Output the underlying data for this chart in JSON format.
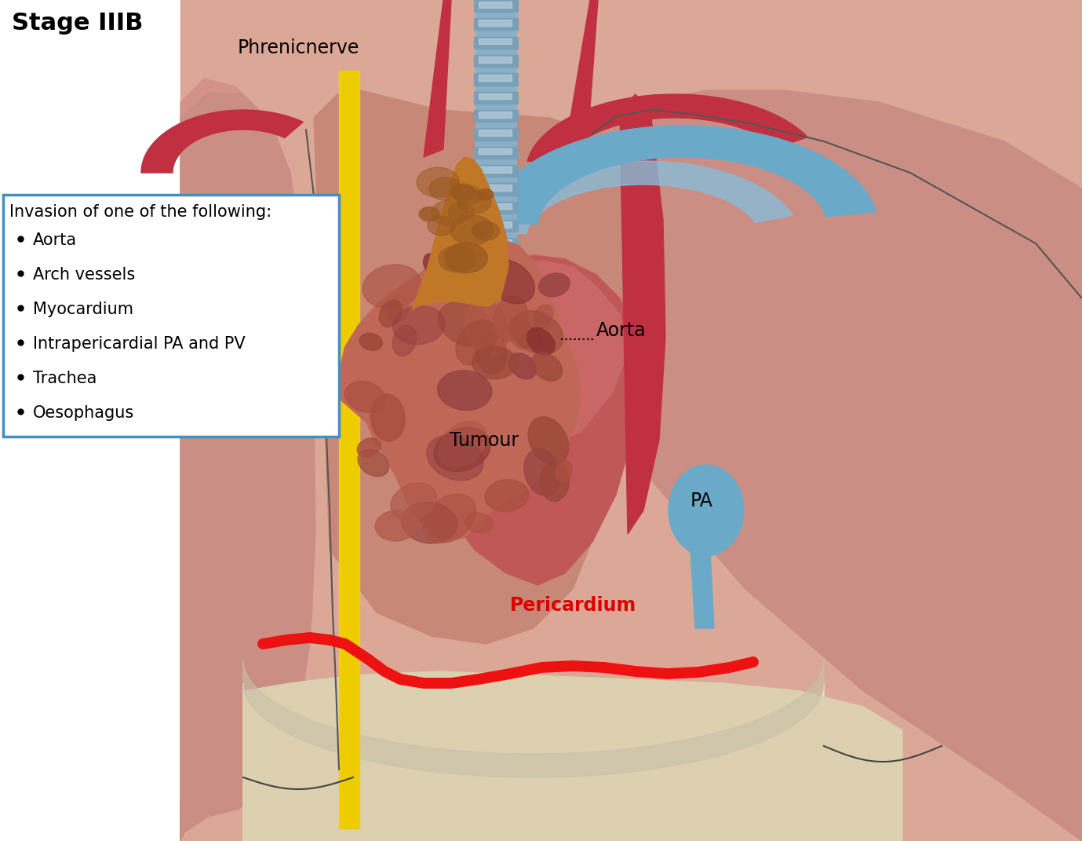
{
  "title": "Stage IIIB",
  "title_fontsize": 22,
  "title_fontweight": "bold",
  "phrenicnerve_label": "Phrenicnerve",
  "aorta_label": "Aorta",
  "tumour_label": "Tumour",
  "pericardium_label": "Pericardium",
  "pa_label": "PA",
  "invasion_title": "Invasion of one of the following:",
  "bullet_items": [
    "Aorta",
    "Arch vessels",
    "Myocardium",
    "Intrapericardial PA and PV",
    "Trachea",
    "Oesophagus"
  ],
  "bg_color": "#ffffff",
  "box_bg": "#ffffff",
  "box_border": "#4090c0",
  "text_color": "#000000",
  "label_color_black": "#000000",
  "label_color_pericardium": "#dd0000",
  "yellow_nerve": "#f0d000",
  "red_pericardium_line": "#ee1111",
  "lung_pink": "#d4938a",
  "lung_dark": "#c48070",
  "heart_red": "#b84040",
  "aorta_red": "#c03040",
  "blue_vessel": "#6aaac8",
  "blue_vessel2": "#88bcd8",
  "trachea_gray": "#8ab0c8",
  "trachea_light": "#b8d0dc",
  "tumour_main": "#c06858",
  "tumour_dark": "#904040",
  "tumour_orange": "#c07830",
  "diaphragm_cream": "#e8dfc8",
  "mediastinum_bg": "#d09888"
}
